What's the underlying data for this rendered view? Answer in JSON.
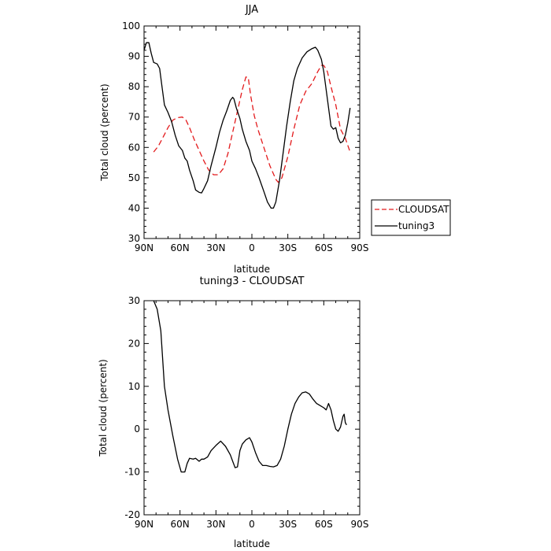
{
  "chart_data": [
    {
      "type": "line",
      "title": "JJA",
      "xlabel": "latitude",
      "ylabel": "Total cloud (percent)",
      "xlim": [
        90,
        -90
      ],
      "ylim": [
        30,
        100
      ],
      "x_ticks": [
        {
          "value": 90,
          "label": "90N"
        },
        {
          "value": 60,
          "label": "60N"
        },
        {
          "value": 30,
          "label": "30N"
        },
        {
          "value": 0,
          "label": "0"
        },
        {
          "value": -30,
          "label": "30S"
        },
        {
          "value": -60,
          "label": "60S"
        },
        {
          "value": -90,
          "label": "90S"
        }
      ],
      "y_ticks": [
        30,
        40,
        50,
        60,
        70,
        80,
        90,
        100
      ],
      "legend_placement": "right",
      "series": [
        {
          "name": "CLOUDSAT",
          "color": "#e31a1c",
          "dash": "dashed",
          "points": [
            [
              82,
              58.5
            ],
            [
              78,
              60.5
            ],
            [
              74,
              63.5
            ],
            [
              70,
              66.5
            ],
            [
              66,
              69
            ],
            [
              62,
              69.8
            ],
            [
              58,
              70
            ],
            [
              55,
              69
            ],
            [
              52,
              66.5
            ],
            [
              48,
              62.5
            ],
            [
              44,
              59
            ],
            [
              40,
              55.5
            ],
            [
              36,
              52.5
            ],
            [
              32,
              51
            ],
            [
              28,
              51
            ],
            [
              24,
              53
            ],
            [
              20,
              58
            ],
            [
              16,
              65
            ],
            [
              12,
              72
            ],
            [
              8,
              79
            ],
            [
              5,
              83.2
            ],
            [
              3,
              83
            ],
            [
              1,
              77
            ],
            [
              -2,
              70.5
            ],
            [
              -5,
              66
            ],
            [
              -10,
              60
            ],
            [
              -15,
              54
            ],
            [
              -20,
              49.5
            ],
            [
              -22,
              48.5
            ],
            [
              -25,
              50
            ],
            [
              -30,
              57
            ],
            [
              -35,
              66
            ],
            [
              -40,
              74
            ],
            [
              -45,
              78.5
            ],
            [
              -50,
              81
            ],
            [
              -55,
              85
            ],
            [
              -58,
              87
            ],
            [
              -60,
              87
            ],
            [
              -63,
              85
            ],
            [
              -66,
              80
            ],
            [
              -70,
              74
            ],
            [
              -74,
              66
            ],
            [
              -78,
              63
            ],
            [
              -82,
              58.5
            ]
          ]
        },
        {
          "name": "tuning3",
          "color": "#000000",
          "dash": "solid",
          "points": [
            [
              90,
              92
            ],
            [
              88,
              94.5
            ],
            [
              86,
              94.5
            ],
            [
              84,
              91
            ],
            [
              82,
              88
            ],
            [
              79,
              87.5
            ],
            [
              77,
              86
            ],
            [
              75,
              80
            ],
            [
              73,
              74
            ],
            [
              70,
              71.5
            ],
            [
              67,
              68.5
            ],
            [
              64,
              64
            ],
            [
              61,
              60.5
            ],
            [
              58,
              59
            ],
            [
              56,
              56.5
            ],
            [
              54,
              55.5
            ],
            [
              52,
              52.5
            ],
            [
              49,
              49
            ],
            [
              47,
              46
            ],
            [
              44,
              45.2
            ],
            [
              42,
              45
            ],
            [
              40,
              46.5
            ],
            [
              37,
              49
            ],
            [
              34,
              54
            ],
            [
              30,
              60
            ],
            [
              27,
              65
            ],
            [
              24,
              69
            ],
            [
              21,
              72
            ],
            [
              18,
              75.5
            ],
            [
              16,
              76.5
            ],
            [
              15,
              76
            ],
            [
              13,
              73
            ],
            [
              10,
              69.5
            ],
            [
              8,
              66
            ],
            [
              5,
              62
            ],
            [
              2,
              59
            ],
            [
              0,
              55.5
            ],
            [
              -3,
              53
            ],
            [
              -6,
              50
            ],
            [
              -10,
              45.5
            ],
            [
              -13,
              42
            ],
            [
              -16,
              40
            ],
            [
              -18,
              40
            ],
            [
              -20,
              42
            ],
            [
              -23,
              49
            ],
            [
              -26,
              58
            ],
            [
              -29,
              67
            ],
            [
              -32,
              75
            ],
            [
              -35,
              82
            ],
            [
              -38,
              86
            ],
            [
              -42,
              89.5
            ],
            [
              -46,
              91.5
            ],
            [
              -50,
              92.5
            ],
            [
              -53,
              93
            ],
            [
              -55,
              92
            ],
            [
              -58,
              89
            ],
            [
              -60,
              85
            ],
            [
              -63,
              76
            ],
            [
              -66,
              67
            ],
            [
              -68,
              66
            ],
            [
              -70,
              66.5
            ],
            [
              -72,
              63
            ],
            [
              -74,
              61.5
            ],
            [
              -76,
              62
            ],
            [
              -78,
              64
            ],
            [
              -80,
              68
            ],
            [
              -82,
              73
            ]
          ]
        }
      ]
    },
    {
      "type": "line",
      "title": "tuning3 - CLOUDSAT",
      "xlabel": "latitude",
      "ylabel": "Total cloud (percent)",
      "xlim": [
        90,
        -90
      ],
      "ylim": [
        -20,
        30
      ],
      "x_ticks": [
        {
          "value": 90,
          "label": "90N"
        },
        {
          "value": 60,
          "label": "60N"
        },
        {
          "value": 30,
          "label": "30N"
        },
        {
          "value": 0,
          "label": "0"
        },
        {
          "value": -30,
          "label": "30S"
        },
        {
          "value": -60,
          "label": "60S"
        },
        {
          "value": -90,
          "label": "90S"
        }
      ],
      "y_ticks": [
        -20,
        -10,
        0,
        10,
        20,
        30
      ],
      "series": [
        {
          "color": "#000000",
          "dash": "solid",
          "points": [
            [
              82,
              30
            ],
            [
              79,
              28
            ],
            [
              76,
              23
            ],
            [
              73,
              10
            ],
            [
              70,
              4.5
            ],
            [
              66,
              -1.5
            ],
            [
              62,
              -7
            ],
            [
              59,
              -10
            ],
            [
              56,
              -10
            ],
            [
              54,
              -8
            ],
            [
              52,
              -6.8
            ],
            [
              49,
              -7
            ],
            [
              47,
              -6.8
            ],
            [
              44,
              -7.5
            ],
            [
              42,
              -7
            ],
            [
              40,
              -7
            ],
            [
              37,
              -6.5
            ],
            [
              34,
              -5
            ],
            [
              30,
              -3.8
            ],
            [
              26,
              -2.8
            ],
            [
              22,
              -4
            ],
            [
              18,
              -6
            ],
            [
              16,
              -7.5
            ],
            [
              14,
              -9
            ],
            [
              12,
              -8.8
            ],
            [
              10,
              -5
            ],
            [
              8,
              -3.5
            ],
            [
              5,
              -2.5
            ],
            [
              2,
              -2
            ],
            [
              0,
              -3
            ],
            [
              -3,
              -5.5
            ],
            [
              -6,
              -7.5
            ],
            [
              -9,
              -8.5
            ],
            [
              -12,
              -8.5
            ],
            [
              -15,
              -8.7
            ],
            [
              -18,
              -8.8
            ],
            [
              -21,
              -8.5
            ],
            [
              -24,
              -7
            ],
            [
              -27,
              -4
            ],
            [
              -30,
              0
            ],
            [
              -33,
              3.5
            ],
            [
              -36,
              6
            ],
            [
              -39,
              7.5
            ],
            [
              -42,
              8.5
            ],
            [
              -45,
              8.7
            ],
            [
              -48,
              8.2
            ],
            [
              -51,
              7
            ],
            [
              -54,
              6
            ],
            [
              -57,
              5.5
            ],
            [
              -60,
              5
            ],
            [
              -62,
              4.5
            ],
            [
              -64,
              6
            ],
            [
              -66,
              4.5
            ],
            [
              -68,
              2
            ],
            [
              -70,
              0
            ],
            [
              -72,
              -0.5
            ],
            [
              -74,
              0.5
            ],
            [
              -76,
              3
            ],
            [
              -77,
              3.5
            ],
            [
              -78,
              1.5
            ],
            [
              -79,
              1
            ]
          ]
        }
      ]
    }
  ]
}
